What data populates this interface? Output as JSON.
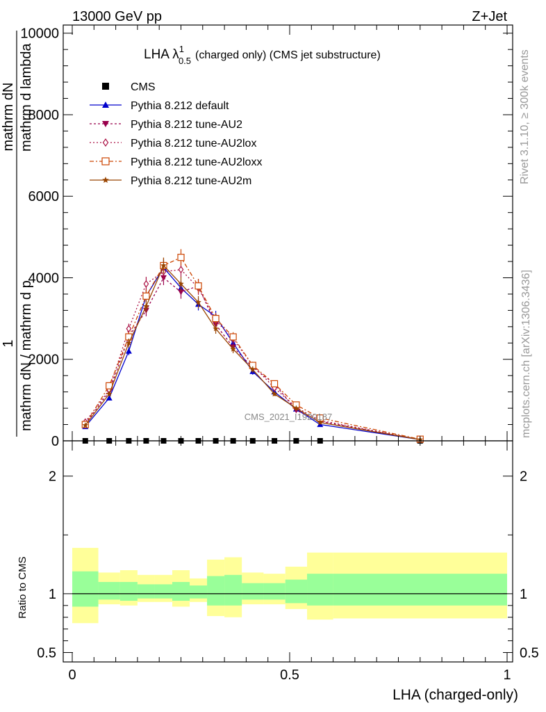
{
  "header": {
    "energy": "13000 GeV pp",
    "process": "Z+Jet"
  },
  "side_labels": {
    "rivet": "Rivet 3.1.10, ≥ 300k events",
    "mcplots": "mcplots.cern.ch [arXiv:1306.3436]"
  },
  "watermark": "CMS_2021_I1920187",
  "chart_data": [
    {
      "type": "line",
      "title": "LHA λ",
      "title_sup": "1",
      "title_sub": "0.5",
      "title_rest": "(charged only) (CMS jet substructure)",
      "ylabel": "1 / mathrm dN / mathrm d p_T mathrm d p_T mathrm d lambda",
      "ylabel_parts": [
        "1",
        "mathrm dN",
        "mathrm d p",
        "T",
        "mathrm dN / mathrm d p",
        "T",
        "mathrm d p",
        "T",
        "mathrm d lambda"
      ],
      "xlim": [
        0,
        1
      ],
      "ylim": [
        0,
        10200
      ],
      "y_ticks": [
        0,
        2000,
        4000,
        6000,
        8000,
        10000
      ],
      "y_tick_labels": [
        "0",
        "2000",
        "4000",
        "6000",
        "8000",
        "10000"
      ],
      "legend_position": "top-left",
      "x": [
        0.03,
        0.085,
        0.13,
        0.17,
        0.21,
        0.25,
        0.29,
        0.33,
        0.37,
        0.415,
        0.465,
        0.515,
        0.57,
        0.8
      ],
      "series": [
        {
          "name": "CMS",
          "color": "#000000",
          "marker": "square",
          "dash": "none",
          "values": [
            0,
            0,
            0,
            0,
            0,
            0,
            0,
            0,
            0,
            0,
            0,
            0,
            0,
            0
          ]
        },
        {
          "name": "Pythia 8.212 default",
          "color": "#0000cc",
          "marker": "triangle-up",
          "dash": "solid",
          "values": [
            350,
            1050,
            2200,
            3550,
            4250,
            3750,
            3350,
            3050,
            2400,
            1700,
            1200,
            780,
            400,
            30
          ]
        },
        {
          "name": "Pythia 8.212 tune-AU2",
          "color": "#99004c",
          "marker": "triangle-down",
          "dash": "3,3",
          "values": [
            420,
            1200,
            2550,
            3200,
            4000,
            3650,
            3800,
            2850,
            2300,
            1800,
            1400,
            750,
            480,
            30
          ]
        },
        {
          "name": "Pythia 8.212 tune-AU2lox",
          "color": "#aa1144",
          "marker": "diamond-open",
          "dash": "2,3",
          "values": [
            460,
            1250,
            2750,
            3850,
            4150,
            4200,
            3750,
            2950,
            2500,
            1850,
            1300,
            820,
            500,
            30
          ]
        },
        {
          "name": "Pythia 8.212 tune-AU2loxx",
          "color": "#cc4400",
          "marker": "square-open",
          "dash": "6,3,2,3",
          "values": [
            400,
            1350,
            2550,
            3550,
            4300,
            4500,
            3800,
            3000,
            2550,
            1850,
            1400,
            880,
            560,
            40
          ]
        },
        {
          "name": "Pythia 8.212 tune-AU2m",
          "color": "#994400",
          "marker": "star",
          "dash": "solid",
          "values": [
            380,
            1150,
            2400,
            3300,
            4300,
            3850,
            3400,
            2750,
            2250,
            1750,
            1150,
            800,
            450,
            30
          ]
        }
      ]
    },
    {
      "type": "area",
      "ylabel": "Ratio to CMS",
      "xlabel": "LHA (charged-only)",
      "xlim": [
        0,
        1
      ],
      "ylim": [
        0.42,
        2.3
      ],
      "x_ticks": [
        0,
        0.5,
        1
      ],
      "x_tick_labels": [
        "0",
        "0.5",
        "1"
      ],
      "y_ticks": [
        0.5,
        1,
        2
      ],
      "y_tick_labels": [
        "0.5",
        "1",
        "2"
      ],
      "reference": 1,
      "bin_edges": [
        0,
        0.06,
        0.11,
        0.15,
        0.19,
        0.23,
        0.27,
        0.31,
        0.35,
        0.39,
        0.44,
        0.49,
        0.54,
        0.6,
        1.0
      ],
      "bands": [
        {
          "name": "outer",
          "color": "#ffff99",
          "lo": [
            0.75,
            0.91,
            0.9,
            0.93,
            0.93,
            0.89,
            0.93,
            0.81,
            0.8,
            0.91,
            0.91,
            0.87,
            0.78,
            0.79
          ],
          "hi": [
            1.39,
            1.18,
            1.2,
            1.16,
            1.16,
            1.2,
            1.13,
            1.29,
            1.31,
            1.18,
            1.17,
            1.23,
            1.35,
            1.35
          ]
        },
        {
          "name": "inner",
          "color": "#99ff99",
          "lo": [
            0.89,
            0.95,
            0.94,
            0.96,
            0.96,
            0.94,
            0.96,
            0.9,
            0.9,
            0.95,
            0.95,
            0.92,
            0.9,
            0.9
          ],
          "hi": [
            1.19,
            1.1,
            1.1,
            1.08,
            1.08,
            1.1,
            1.07,
            1.15,
            1.16,
            1.09,
            1.09,
            1.12,
            1.17,
            1.17
          ]
        }
      ]
    }
  ]
}
